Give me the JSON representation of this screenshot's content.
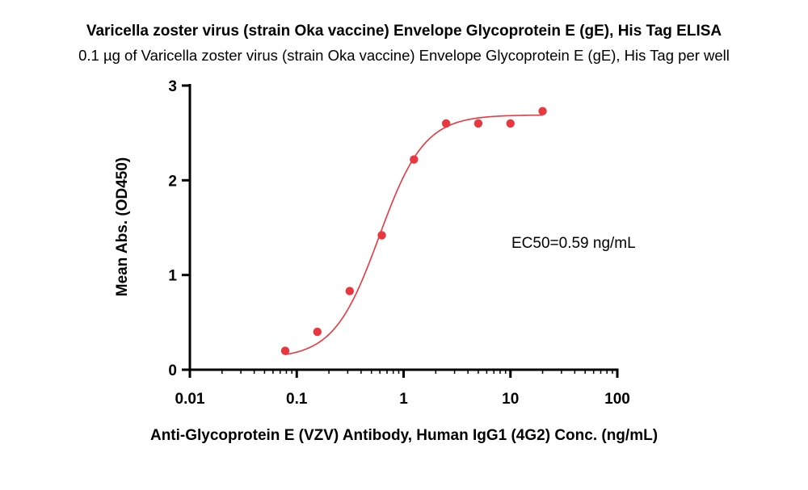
{
  "chart_data": {
    "type": "scatter",
    "title": "Varicella zoster virus (strain Oka vaccine) Envelope Glycoprotein E (gE), His Tag ELISA",
    "subtitle": "0.1 µg of Varicella zoster virus (strain Oka vaccine) Envelope Glycoprotein E (gE), His Tag per well",
    "xlabel": "Anti-Glycoprotein E (VZV) Antibody, Human IgG1 (4G2) Conc. (ng/mL)",
    "ylabel": "Mean Abs. (OD450)",
    "x_scale": "log",
    "xlim": [
      0.01,
      100
    ],
    "ylim": [
      0,
      3
    ],
    "x_ticks": [
      "0.01",
      "0.1",
      "1",
      "10",
      "100"
    ],
    "y_ticks": [
      "0",
      "1",
      "2",
      "3"
    ],
    "grid": false,
    "color": "#e8373f",
    "x": [
      0.078,
      0.156,
      0.313,
      0.625,
      1.25,
      2.5,
      5,
      10,
      20
    ],
    "y": [
      0.2,
      0.4,
      0.83,
      1.42,
      2.22,
      2.6,
      2.6,
      2.6,
      2.73
    ],
    "fit": {
      "model": "4PL",
      "bottom": 0.12,
      "top": 2.69,
      "ec50": 0.59,
      "hill": 2.05
    },
    "annotation": "EC50=0.59 ng/mL"
  }
}
